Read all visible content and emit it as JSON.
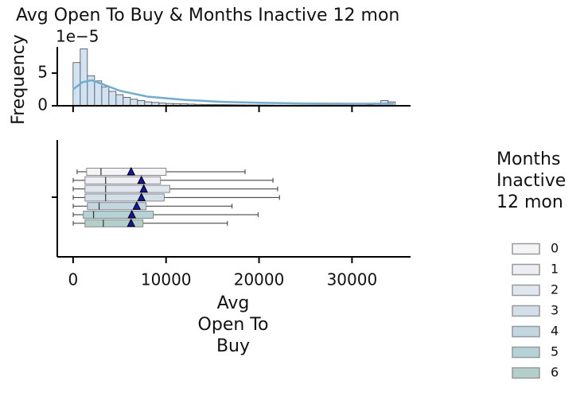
{
  "chart_data": [
    {
      "type": "histogram",
      "title": "Avg Open To Buy & Months Inactive 12 mon",
      "ylabel": "Frequency",
      "y_scale_label": "1e−5",
      "bins": [
        0,
        770,
        1540,
        2310,
        3080,
        3850,
        4620,
        5390,
        6160,
        6930,
        7700,
        8470,
        9240,
        10010,
        10780,
        11550,
        12320,
        13090,
        13860,
        14630,
        15400,
        16170,
        16940,
        17710,
        18480,
        19250,
        20020,
        20790,
        21560,
        22330,
        23100,
        23870,
        24640,
        25410,
        26180,
        26950,
        27720,
        28490,
        29260,
        30030,
        30800,
        31570,
        32340,
        33110,
        33880,
        34650
      ],
      "values": [
        6.6,
        8.7,
        4.6,
        3.8,
        2.9,
        2.2,
        1.7,
        1.3,
        1.0,
        0.8,
        0.6,
        0.5,
        0.4,
        0.35,
        0.3,
        0.28,
        0.25,
        0.22,
        0.2,
        0.18,
        0.17,
        0.16,
        0.15,
        0.14,
        0.13,
        0.12,
        0.12,
        0.11,
        0.1,
        0.1,
        0.1,
        0.1,
        0.1,
        0.1,
        0.1,
        0.1,
        0.1,
        0.1,
        0.1,
        0.1,
        0.1,
        0.15,
        0.4,
        0.8,
        0.6
      ],
      "color": "#c6dbef",
      "kde": {
        "x": [
          0,
          1000,
          2000,
          3000,
          5000,
          8000,
          12000,
          16000,
          20000,
          25000,
          30000,
          34500
        ],
        "values": [
          2.5,
          3.6,
          3.9,
          3.4,
          2.3,
          1.4,
          0.9,
          0.6,
          0.45,
          0.35,
          0.3,
          0.3
        ],
        "color": "#6baed6"
      },
      "xlim": [
        -1700,
        36300
      ],
      "xticks": [
        0,
        10000,
        20000,
        30000
      ],
      "ylim": [
        0,
        9
      ],
      "yticks": [
        0,
        5
      ]
    },
    {
      "type": "box",
      "xlabel": "Avg Open To Buy",
      "legend_title": "Months Inactive 12 mon",
      "xlim": [
        -1700,
        36300
      ],
      "xticks": [
        0,
        10000,
        20000,
        30000
      ],
      "series": [
        {
          "name": "0",
          "color": "#f5f5f7",
          "whislo": 430,
          "q1": 1450,
          "med": 3000,
          "q3": 10000,
          "whishi": 18500,
          "mean": 6240
        },
        {
          "name": "1",
          "color": "#eceef3",
          "whislo": 14,
          "q1": 1280,
          "med": 3500,
          "q3": 9400,
          "whishi": 21500,
          "mean": 7350
        },
        {
          "name": "2",
          "color": "#e0e6ef",
          "whislo": 14,
          "q1": 1280,
          "med": 3500,
          "q3": 10400,
          "whishi": 22000,
          "mean": 7600
        },
        {
          "name": "3",
          "color": "#d2dfe9",
          "whislo": 14,
          "q1": 1280,
          "med": 3500,
          "q3": 9800,
          "whishi": 22200,
          "mean": 7350
        },
        {
          "name": "4",
          "color": "#c3d7e3",
          "whislo": 14,
          "q1": 1540,
          "med": 2800,
          "q3": 7860,
          "whishi": 17100,
          "mean": 6840
        },
        {
          "name": "5",
          "color": "#b4d3d6",
          "whislo": 14,
          "q1": 1100,
          "med": 2200,
          "q3": 8630,
          "whishi": 19900,
          "mean": 6320
        },
        {
          "name": "6",
          "color": "#b3cfc9",
          "whislo": 14,
          "q1": 1280,
          "med": 3250,
          "q3": 7520,
          "whishi": 16600,
          "mean": 6240
        }
      ]
    }
  ]
}
